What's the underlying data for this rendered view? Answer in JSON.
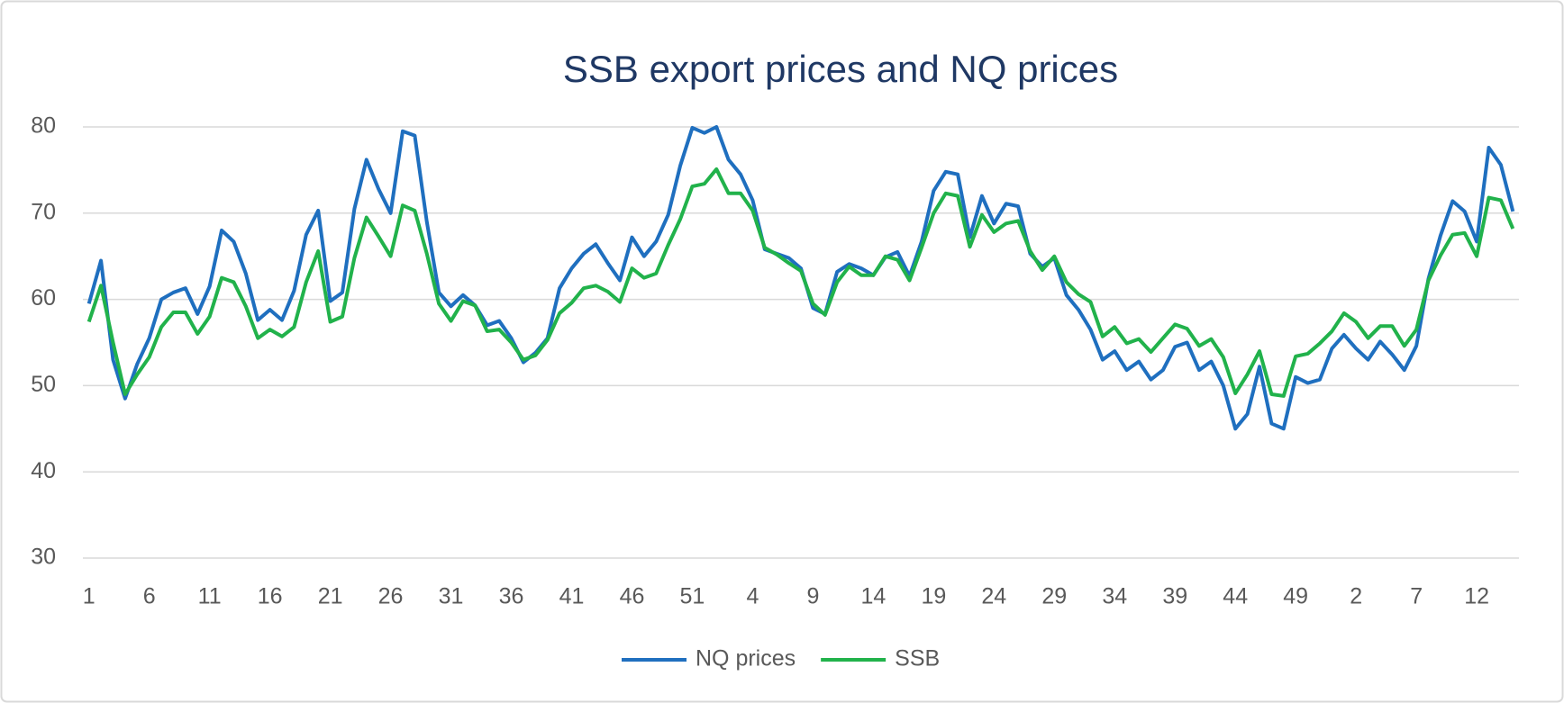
{
  "chart_data": {
    "type": "line",
    "title": "SSB export prices and NQ prices",
    "categories": [
      "1",
      null,
      null,
      null,
      null,
      "6",
      null,
      null,
      null,
      null,
      "11",
      null,
      null,
      null,
      null,
      "16",
      null,
      null,
      null,
      null,
      "21",
      null,
      null,
      null,
      null,
      "26",
      null,
      null,
      null,
      null,
      "31",
      null,
      null,
      null,
      null,
      "36",
      null,
      null,
      null,
      null,
      "41",
      null,
      null,
      null,
      null,
      "46",
      null,
      null,
      null,
      null,
      "51",
      null,
      null,
      null,
      null,
      "4",
      null,
      null,
      null,
      null,
      "9",
      null,
      null,
      null,
      null,
      "14",
      null,
      null,
      null,
      null,
      "19",
      null,
      null,
      null,
      null,
      "24",
      null,
      null,
      null,
      null,
      "29",
      null,
      null,
      null,
      null,
      "34",
      null,
      null,
      null,
      null,
      "39",
      null,
      null,
      null,
      null,
      "44",
      null,
      null,
      null,
      null,
      "49",
      null,
      null,
      null,
      null,
      "2",
      null,
      null,
      null,
      null,
      "7",
      null,
      null,
      null,
      null,
      "12",
      null,
      null,
      null
    ],
    "series": [
      {
        "name": "NQ prices",
        "color": "#1f6fbf",
        "values": [
          59.5,
          64.5,
          53,
          48.5,
          52.5,
          55.5,
          60,
          60.8,
          61.3,
          58.3,
          61.5,
          68,
          66.7,
          63,
          57.6,
          58.8,
          57.6,
          61,
          67.5,
          70.3,
          59.8,
          60.8,
          70.5,
          76.2,
          72.8,
          70,
          79.5,
          79,
          69,
          60.8,
          59.2,
          60.5,
          59.3,
          57,
          57.5,
          55.5,
          52.7,
          53.8,
          55.5,
          61.3,
          63.6,
          65.3,
          66.4,
          64.2,
          62.2,
          67.2,
          65,
          66.7,
          69.8,
          75.5,
          79.9,
          79.3,
          80,
          76.2,
          74.5,
          71.5,
          65.8,
          65.3,
          64.8,
          63.6,
          59,
          58.3,
          63.2,
          64.1,
          63.6,
          62.8,
          64.9,
          65.5,
          62.7,
          66.7,
          72.6,
          74.8,
          74.5,
          67.2,
          72,
          68.8,
          71.1,
          70.8,
          65.3,
          63.8,
          64.8,
          60.5,
          58.8,
          56.5,
          53,
          54,
          51.8,
          52.8,
          50.7,
          51.8,
          54.5,
          55,
          51.8,
          52.8,
          50,
          45,
          46.7,
          52.2,
          45.6,
          45,
          51,
          50.3,
          50.7,
          54.3,
          55.9,
          54.3,
          53,
          55.1,
          53.6,
          51.8,
          54.6,
          62.4,
          67.4,
          71.4,
          70.2,
          66.7,
          77.6,
          75.6,
          70.2
        ]
      },
      {
        "name": "SSB",
        "color": "#21b24b",
        "values": [
          57.4,
          61.6,
          55,
          49,
          51.3,
          53.3,
          56.8,
          58.5,
          58.5,
          56,
          58,
          62.5,
          62,
          59.2,
          55.5,
          56.5,
          55.7,
          56.8,
          62,
          65.6,
          57.4,
          58,
          64.8,
          69.5,
          67.3,
          65,
          70.9,
          70.3,
          65.3,
          59.5,
          57.5,
          59.8,
          59.3,
          56.3,
          56.5,
          55,
          53,
          53.5,
          55.3,
          58.4,
          59.6,
          61.3,
          61.6,
          60.9,
          59.7,
          63.6,
          62.5,
          63,
          66.3,
          69.3,
          73.1,
          73.4,
          75.1,
          72.3,
          72.3,
          70.3,
          66,
          65.2,
          64.2,
          63.3,
          59.5,
          58.2,
          62,
          63.8,
          62.8,
          62.8,
          65,
          64.6,
          62.2,
          66,
          70,
          72.3,
          72,
          66.1,
          69.8,
          67.8,
          68.8,
          69.1,
          65.6,
          63.4,
          65,
          62,
          60.6,
          59.7,
          55.7,
          56.8,
          54.9,
          55.4,
          53.9,
          55.5,
          57.1,
          56.6,
          54.6,
          55.4,
          53.3,
          49.1,
          51.3,
          54,
          49,
          48.8,
          53.4,
          53.7,
          54.9,
          56.3,
          58.4,
          57.4,
          55.5,
          56.9,
          56.9,
          54.6,
          56.5,
          62.2,
          65.1,
          67.5,
          67.7,
          65,
          71.8,
          71.5,
          68.2
        ]
      }
    ],
    "ylim": [
      30,
      80
    ],
    "yticks": [
      30,
      40,
      50,
      60,
      70,
      80
    ],
    "grid": true,
    "legend": "bottom"
  }
}
